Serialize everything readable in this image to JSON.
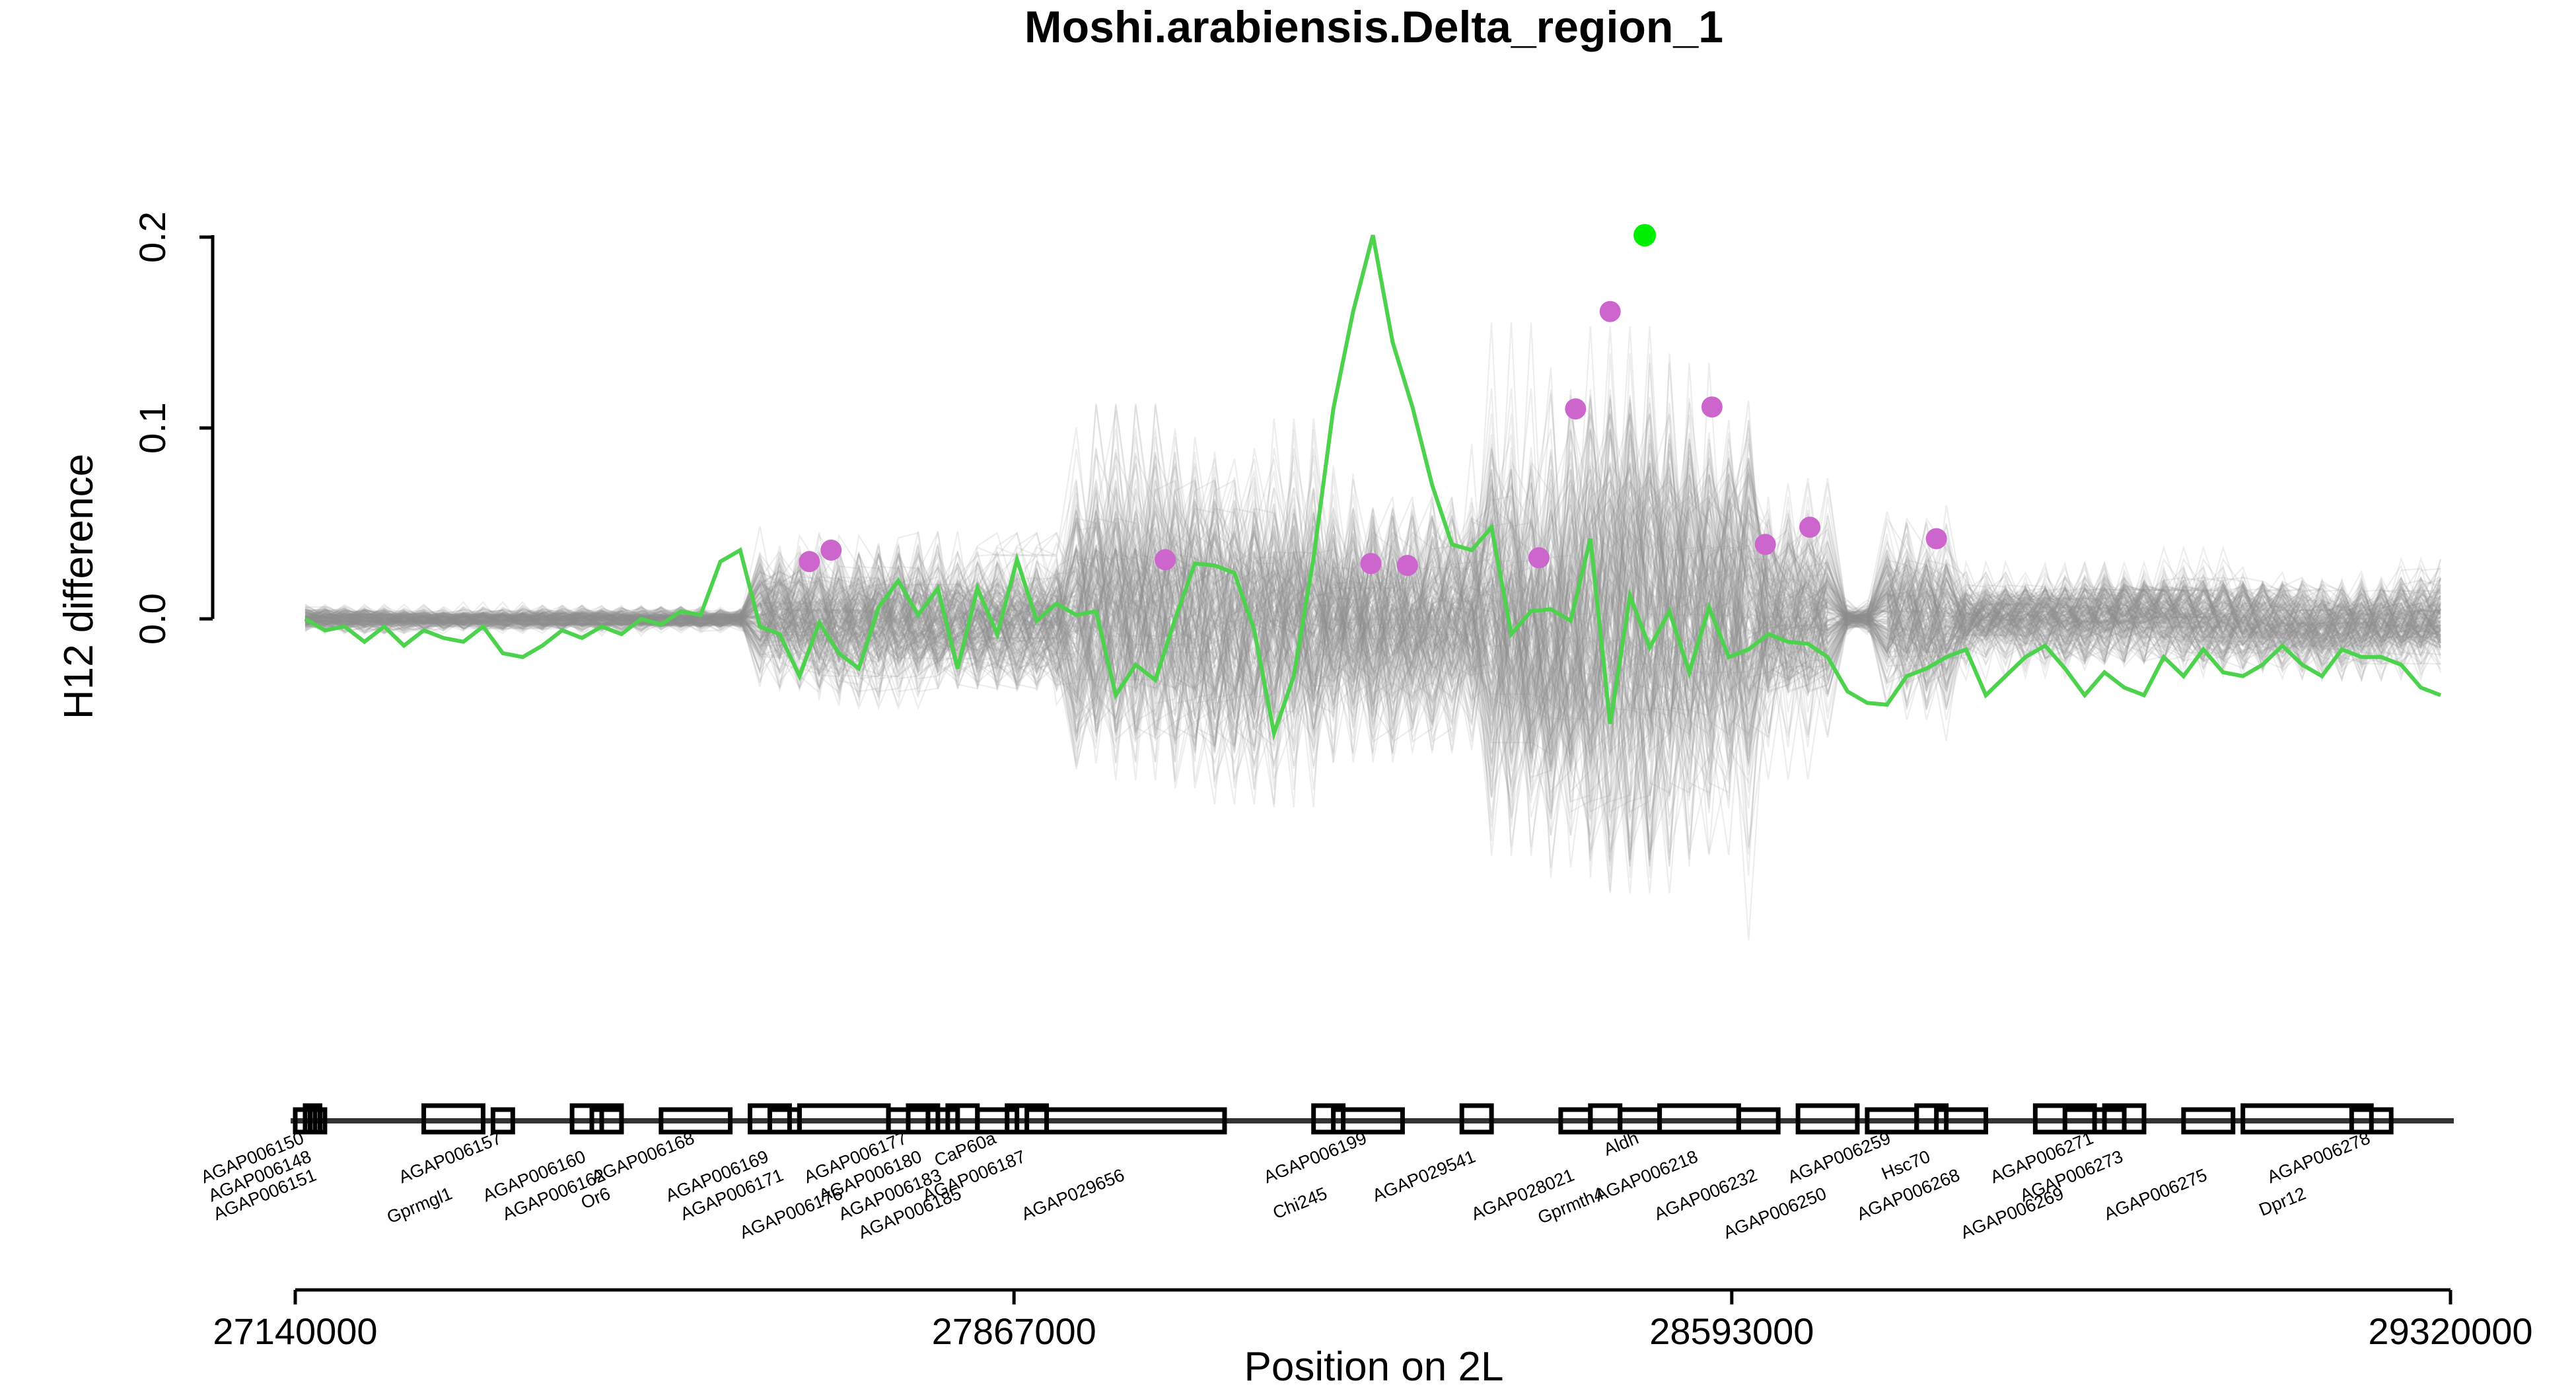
{
  "chart_data": {
    "type": "line",
    "title": "Moshi.arabiensis.Delta_region_1",
    "xlabel": "Position on 2L",
    "ylabel": "H12 difference",
    "xlim": [
      27140000,
      29320000
    ],
    "ylim": [
      -0.2,
      0.2
    ],
    "x_ticks": [
      27140000,
      27867000,
      28593000,
      29320000
    ],
    "x_tick_labels": [
      "27140000",
      "27867000",
      "28593000",
      "29320000"
    ],
    "y_ticks": [
      0.0,
      0.1,
      0.2
    ],
    "y_tick_labels": [
      "0.0",
      "0.1",
      "0.2"
    ],
    "colors": {
      "observed": "#4dd24d",
      "significant_point": "#cc66cc",
      "peak_point": "#00ee00",
      "null_lines": "#8c8c8c"
    },
    "null_series_count": 200,
    "series": [
      {
        "x": [
          27150000,
          27170000,
          27190000,
          27210000,
          27230000,
          27250000,
          27270000,
          27290000,
          27310000,
          27330000,
          27350000,
          27370000,
          27390000,
          27410000,
          27430000,
          27450000,
          27470000,
          27490000,
          27510000,
          27530000,
          27550000,
          27570000,
          27590000,
          27610000,
          27630000,
          27650000,
          27670000,
          27690000,
          27710000,
          27730000,
          27750000,
          27770000,
          27790000,
          27810000,
          27830000,
          27850000,
          27870000,
          27890000,
          27910000,
          27930000,
          27950000,
          27970000,
          27990000,
          28010000,
          28030000,
          28050000,
          28070000,
          28090000,
          28110000,
          28130000,
          28150000,
          28170000,
          28190000,
          28210000,
          28230000,
          28250000,
          28270000,
          28290000,
          28310000,
          28330000,
          28350000,
          28370000,
          28390000,
          28410000,
          28430000,
          28450000,
          28470000,
          28490000,
          28510000,
          28530000,
          28550000,
          28570000,
          28590000,
          28610000,
          28630000,
          28650000,
          28670000,
          28690000,
          28710000,
          28730000,
          28750000,
          28770000,
          28790000,
          28810000,
          28830000,
          28850000,
          28870000,
          28890000,
          28910000,
          28930000,
          28950000,
          28970000,
          28990000,
          29010000,
          29030000,
          29050000,
          29070000,
          29090000,
          29110000,
          29130000,
          29150000,
          29170000,
          29190000,
          29210000,
          29230000,
          29250000,
          29270000,
          29290000,
          29310000
        ],
        "values": [
          0.0,
          -0.006,
          -0.004,
          -0.012,
          -0.004,
          -0.014,
          -0.006,
          -0.01,
          -0.012,
          -0.004,
          -0.018,
          -0.02,
          -0.014,
          -0.006,
          -0.01,
          -0.004,
          -0.008,
          0.0,
          -0.003,
          0.004,
          0.002,
          0.03,
          0.036,
          -0.004,
          -0.008,
          -0.03,
          -0.002,
          -0.018,
          -0.026,
          0.006,
          0.02,
          0.002,
          0.016,
          -0.026,
          0.016,
          -0.008,
          0.031,
          -0.001,
          0.008,
          0.002,
          0.004,
          -0.04,
          -0.024,
          -0.032,
          0.0,
          0.029,
          0.028,
          0.024,
          -0.006,
          -0.06,
          -0.03,
          0.032,
          0.11,
          0.161,
          0.201,
          0.145,
          0.111,
          0.07,
          0.039,
          0.036,
          0.048,
          -0.008,
          0.004,
          0.005,
          -0.001,
          0.042,
          -0.055,
          0.012,
          -0.015,
          0.004,
          -0.028,
          0.006,
          -0.02,
          -0.016,
          -0.008,
          -0.012,
          -0.013,
          -0.02,
          -0.038,
          -0.044,
          -0.045,
          -0.03,
          -0.026,
          -0.02,
          -0.016,
          -0.04,
          -0.03,
          -0.02,
          -0.014,
          -0.026,
          -0.04,
          -0.028,
          -0.036,
          -0.04,
          -0.02,
          -0.03,
          -0.016,
          -0.028,
          -0.03,
          -0.024,
          -0.014,
          -0.024,
          -0.03,
          -0.016,
          -0.02,
          -0.02,
          -0.024,
          -0.036,
          -0.04
        ],
        "significant_points": [
          [
            27660000,
            0.03
          ],
          [
            27682000,
            0.036
          ],
          [
            28020000,
            0.031
          ],
          [
            28228000,
            0.029
          ],
          [
            28265000,
            0.028
          ],
          [
            28398000,
            0.032
          ],
          [
            28435000,
            0.11
          ],
          [
            28470000,
            0.161
          ],
          [
            28573000,
            0.111
          ],
          [
            28627000,
            0.039
          ],
          [
            28672000,
            0.048
          ],
          [
            28800000,
            0.042
          ]
        ],
        "peak_point": [
          28505000,
          0.201
        ]
      }
    ],
    "genes": [
      {
        "name": "AGAP006150",
        "start": 27140000,
        "end": 27160000
      },
      {
        "name": "AGAP006148",
        "start": 27150000,
        "end": 27165000
      },
      {
        "name": "AGAP006151",
        "start": 27155000,
        "end": 27170000
      },
      {
        "name": "Gprmgl1",
        "start": 27270000,
        "end": 27330000
      },
      {
        "name": "AGAP006157",
        "start": 27340000,
        "end": 27360000
      },
      {
        "name": "AGAP006160",
        "start": 27420000,
        "end": 27450000
      },
      {
        "name": "AGAP006162",
        "start": 27440000,
        "end": 27470000
      },
      {
        "name": "Or6",
        "start": 27450000,
        "end": 27470000
      },
      {
        "name": "AGAP006168",
        "start": 27510000,
        "end": 27580000
      },
      {
        "name": "AGAP006169",
        "start": 27600000,
        "end": 27640000
      },
      {
        "name": "AGAP006171",
        "start": 27620000,
        "end": 27650000
      },
      {
        "name": "AGAP006176",
        "start": 27650000,
        "end": 27740000
      },
      {
        "name": "AGAP006177",
        "start": 27740000,
        "end": 27780000
      },
      {
        "name": "AGAP006180",
        "start": 27760000,
        "end": 27790000
      },
      {
        "name": "AGAP006183",
        "start": 27780000,
        "end": 27810000
      },
      {
        "name": "AGAP006185",
        "start": 27800000,
        "end": 27830000
      },
      {
        "name": "CaP60a",
        "start": 27830000,
        "end": 27870000
      },
      {
        "name": "AGAP006187",
        "start": 27860000,
        "end": 27900000
      },
      {
        "name": "AGAP029656",
        "start": 27880000,
        "end": 28080000
      },
      {
        "name": "Chi245",
        "start": 28170000,
        "end": 28200000
      },
      {
        "name": "AGAP006199",
        "start": 28190000,
        "end": 28260000
      },
      {
        "name": "AGAP029541",
        "start": 28320000,
        "end": 28350000
      },
      {
        "name": "AGAP028021",
        "start": 28420000,
        "end": 28450000
      },
      {
        "name": "Gprmth4",
        "start": 28450000,
        "end": 28480000
      },
      {
        "name": "Aldh",
        "start": 28480000,
        "end": 28520000
      },
      {
        "name": "AGAP006218",
        "start": 28520000,
        "end": 28600000
      },
      {
        "name": "AGAP006232",
        "start": 28600000,
        "end": 28640000
      },
      {
        "name": "AGAP006250",
        "start": 28660000,
        "end": 28720000
      },
      {
        "name": "AGAP006259",
        "start": 28730000,
        "end": 28780000
      },
      {
        "name": "Hsc70",
        "start": 28780000,
        "end": 28810000
      },
      {
        "name": "AGAP006268",
        "start": 28800000,
        "end": 28850000
      },
      {
        "name": "AGAP006269",
        "start": 28900000,
        "end": 28960000
      },
      {
        "name": "AGAP006271",
        "start": 28930000,
        "end": 28990000
      },
      {
        "name": "AGAP006273",
        "start": 28970000,
        "end": 29010000
      },
      {
        "name": "AGAP006275",
        "start": 29050000,
        "end": 29100000
      },
      {
        "name": "Dpr12",
        "start": 29110000,
        "end": 29240000
      },
      {
        "name": "AGAP006278",
        "start": 29220000,
        "end": 29260000
      }
    ]
  }
}
